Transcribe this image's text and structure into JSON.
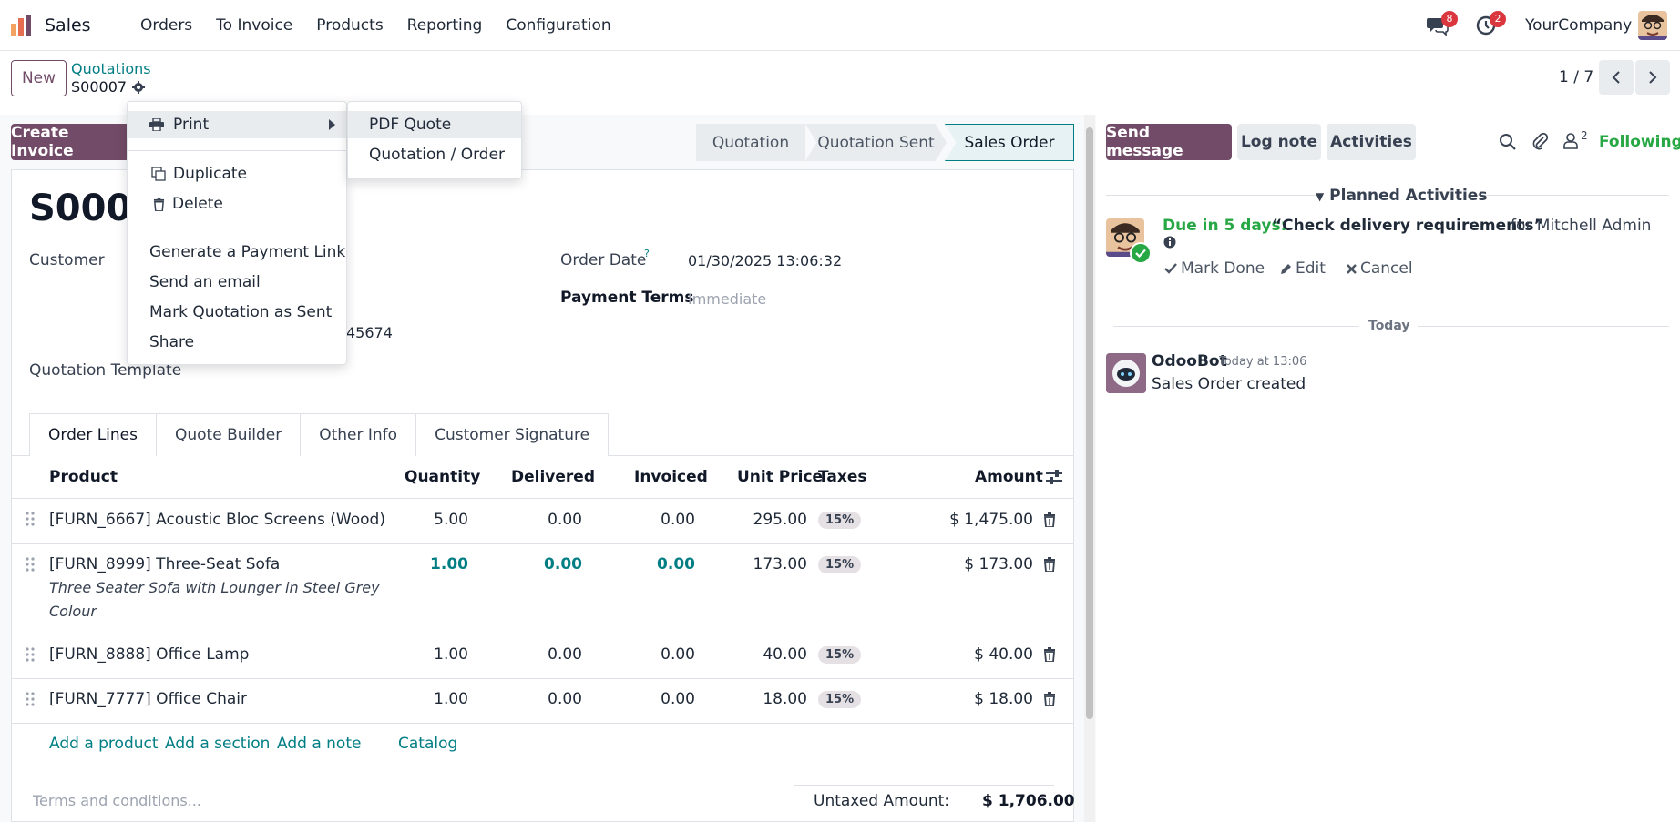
{
  "navbar": {
    "app_name": "Sales",
    "menu": [
      "Orders",
      "To Invoice",
      "Products",
      "Reporting",
      "Configuration"
    ],
    "messages_count": "8",
    "activities_count": "2",
    "company": "YourCompany"
  },
  "control_panel": {
    "new_label": "New",
    "breadcrumb_parent": "Quotations",
    "breadcrumb_current": "S00007",
    "pager": "1 / 7"
  },
  "statusbar": {
    "create_invoice": "Create Invoice",
    "stages": [
      "Quotation",
      "Quotation Sent",
      "Sales Order"
    ],
    "active_stage": "Sales Order"
  },
  "form": {
    "order_name": "S0000",
    "customer_label": "Customer",
    "order_date_label": "Order Date",
    "order_date_help": "?",
    "order_date_value": "01/30/2025 13:06:32",
    "payment_terms_label": "Payment Terms",
    "payment_terms_value": "Immediate",
    "phone_fragment": "45674",
    "quotation_template_label": "Quotation Template"
  },
  "tabs": [
    "Order Lines",
    "Quote Builder",
    "Other Info",
    "Customer Signature"
  ],
  "table": {
    "headers": {
      "product": "Product",
      "quantity": "Quantity",
      "delivered": "Delivered",
      "invoiced": "Invoiced",
      "unit_price": "Unit Price",
      "taxes": "Taxes",
      "amount": "Amount"
    },
    "rows": [
      {
        "product": "[FURN_6667] Acoustic Bloc Screens (Wood)",
        "description": "",
        "quantity": "5.00",
        "delivered": "0.00",
        "invoiced": "0.00",
        "unit_price": "295.00",
        "tax": "15%",
        "amount": "$ 1,475.00"
      },
      {
        "product": "[FURN_8999] Three-Seat Sofa",
        "description_line1": "Three Seater Sofa with Lounger in Steel Grey",
        "description_line2": "Colour",
        "quantity": "1.00",
        "delivered": "0.00",
        "invoiced": "0.00",
        "unit_price": "173.00",
        "tax": "15%",
        "amount": "$ 173.00"
      },
      {
        "product": "[FURN_8888] Office Lamp",
        "description": "",
        "quantity": "1.00",
        "delivered": "0.00",
        "invoiced": "0.00",
        "unit_price": "40.00",
        "tax": "15%",
        "amount": "$ 40.00"
      },
      {
        "product": "[FURN_7777] Office Chair",
        "description": "",
        "quantity": "1.00",
        "delivered": "0.00",
        "invoiced": "0.00",
        "unit_price": "18.00",
        "tax": "15%",
        "amount": "$ 18.00"
      }
    ],
    "add_links": [
      "Add a product",
      "Add a section",
      "Add a note",
      "Catalog"
    ]
  },
  "footer": {
    "terms_placeholder": "Terms and conditions...",
    "untaxed_label": "Untaxed Amount:",
    "untaxed_value": "$ 1,706.00"
  },
  "action_menu": {
    "print": "Print",
    "duplicate": "Duplicate",
    "delete": "Delete",
    "generate_payment_link": "Generate a Payment Link",
    "send_email": "Send an email",
    "mark_sent": "Mark Quotation as Sent",
    "share": "Share"
  },
  "print_submenu": {
    "pdf_quote": "PDF Quote",
    "quotation_order": "Quotation / Order"
  },
  "chatter": {
    "send_message": "Send message",
    "log_note": "Log note",
    "activities": "Activities",
    "followers_count": "2",
    "following": "Following",
    "planned_activities": "Planned Activities",
    "activity": {
      "due": "Due in 5 days:",
      "summary": "“Check delivery requirements”",
      "for_user": "for Mitchell Admin",
      "mark_done": "Mark Done",
      "edit": "Edit",
      "cancel": "Cancel"
    },
    "today_label": "Today",
    "message": {
      "author": "OdooBot",
      "time": "Today at 13:06",
      "body": "Sales Order created"
    }
  },
  "colors": {
    "brand": "#714b67",
    "link": "#017e84",
    "success": "#28a745",
    "badge": "#d9363e"
  }
}
